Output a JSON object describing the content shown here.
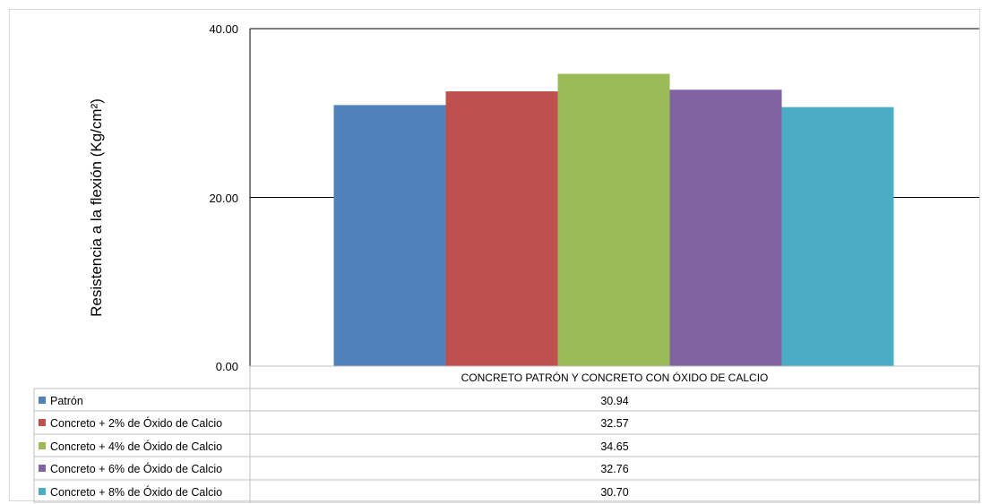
{
  "chart_data": {
    "type": "bar",
    "categories": [
      "CONCRETO PATRÓN Y CONCRETO CON ÓXIDO DE CALCIO"
    ],
    "series": [
      {
        "name": "Patrón",
        "values": [
          30.94
        ],
        "value_label": "30.94",
        "color": "#4f81bd"
      },
      {
        "name": "Concreto + 2% de Óxido de Calcio",
        "values": [
          32.57
        ],
        "value_label": "32.57",
        "color": "#c0504d"
      },
      {
        "name": "Concreto + 4% de Óxido de Calcio",
        "values": [
          34.65
        ],
        "value_label": "34.65",
        "color": "#9bbb59"
      },
      {
        "name": "Concreto + 6% de Óxido de Calcio",
        "values": [
          32.76
        ],
        "value_label": "32.76",
        "color": "#8064a2"
      },
      {
        "name": "Concreto + 8% de Óxido de Calcio",
        "values": [
          30.7
        ],
        "value_label": "30.70",
        "color": "#4bacc6"
      }
    ],
    "ylabel": "Resistencia a la flexión (Kg/cm²)",
    "ylim": [
      0,
      40
    ],
    "yticks": [
      "0.00",
      "20.00",
      "40.00"
    ],
    "grid": true,
    "legend": "data-table"
  }
}
